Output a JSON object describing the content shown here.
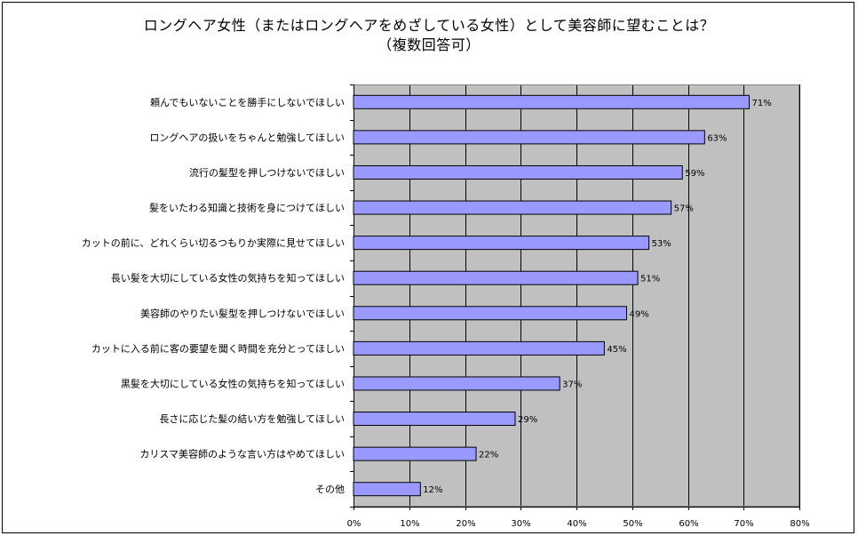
{
  "chart_data": {
    "type": "bar",
    "orientation": "horizontal",
    "title_line1": "ロングヘア女性（またはロングヘアをめざしている女性）として美容師に望むことは？",
    "title_line2": "（複数回答可）",
    "categories": [
      "頼んでもいないことを勝手にしないでほしい",
      "ロングヘアの扱いをちゃんと勉強してほしい",
      "流行の髪型を押しつけないでほしい",
      "髪をいたわる知識と技術を身につけてほしい",
      "カットの前に、どれくらい切るつもりか実際に見せてほしい",
      "長い髪を大切にしている女性の気持ちを知ってほしい",
      "美容師のやりたい髪型を押しつけないでほしい",
      "カットに入る前に客の要望を聞く時間を充分とってほしい",
      "黒髪を大切にしている女性の気持ちを知ってほしい",
      "長さに応じた髪の結い方を勉強してほしい",
      "カリスマ美容師のような言い方はやめてほしい",
      "その他"
    ],
    "values": [
      71,
      63,
      59,
      57,
      53,
      51,
      49,
      45,
      37,
      29,
      22,
      12
    ],
    "value_labels": [
      "71%",
      "63%",
      "59%",
      "57%",
      "53%",
      "51%",
      "49%",
      "45%",
      "37%",
      "29%",
      "22%",
      "12%"
    ],
    "xlim": [
      0,
      80
    ],
    "xticks": [
      0,
      10,
      20,
      30,
      40,
      50,
      60,
      70,
      80
    ],
    "xtick_labels": [
      "0%",
      "10%",
      "20%",
      "30%",
      "40%",
      "50%",
      "60%",
      "70%",
      "80%"
    ],
    "grid": true,
    "legend": "none",
    "bar_color": "#9999ff",
    "plot_bg": "#c0c0c0"
  }
}
